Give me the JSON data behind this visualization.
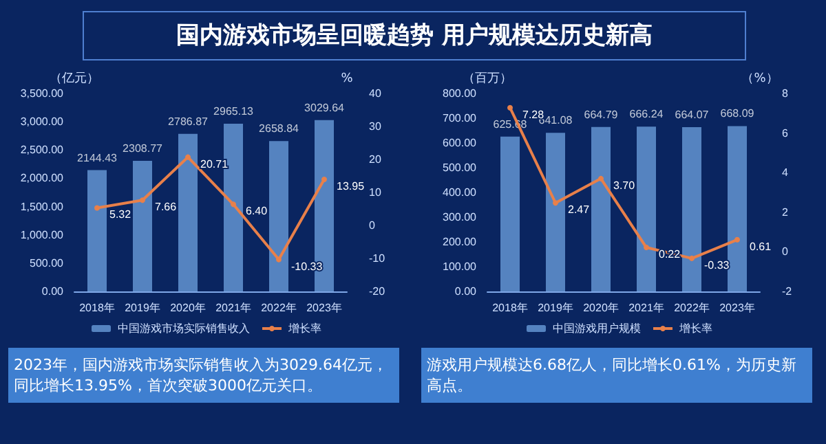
{
  "chart_data": [
    {
      "type": "bar",
      "title": "国内游戏市场呈回暖趋势 用户规模达历史新高",
      "categories": [
        "2018年",
        "2019年",
        "2020年",
        "2021年",
        "2022年",
        "2023年"
      ],
      "ylabel": "（亿元）",
      "y2label": "%",
      "ylim": [
        0,
        3500
      ],
      "yticks": [
        {
          "value": 0,
          "label": "0.00"
        },
        {
          "value": 500,
          "label": "500.00"
        },
        {
          "value": 1000,
          "label": "1,000.00"
        },
        {
          "value": 1500,
          "label": "1,500.00"
        },
        {
          "value": 2000,
          "label": "2,000.00"
        },
        {
          "value": 2500,
          "label": "2,500.00"
        },
        {
          "value": 3000,
          "label": "3,000.00"
        },
        {
          "value": 3500,
          "label": "3,500.00"
        }
      ],
      "y2lim": [
        -20,
        40
      ],
      "y2ticks": [
        -20,
        -10,
        0,
        10,
        20,
        30,
        40
      ],
      "legend": "bottom",
      "grid": false,
      "annotations": [
        "2023年，国内游戏市场实际销售收入为3029.64亿元，同比增长13.95%，首次突破3000亿元关口。"
      ],
      "series": [
        {
          "name": "中国游戏市场实际销售收入",
          "color": "#6fa3e0",
          "values": [
            2144.43,
            2308.77,
            2786.87,
            2965.13,
            2658.84,
            3029.64
          ],
          "value_labels": [
            "2144.43",
            "2308.77",
            "2786.87",
            "2965.13",
            "2658.84",
            "3029.64"
          ]
        },
        {
          "name": "增长率",
          "type": "line",
          "axis": "y2",
          "marker": "circle",
          "color": "#e8804a",
          "values": [
            5.32,
            7.66,
            20.71,
            6.4,
            -10.33,
            13.95
          ],
          "value_labels": [
            "5.32",
            "7.66",
            "20.71",
            "6.40",
            "-10.33",
            "13.95"
          ]
        }
      ]
    },
    {
      "type": "bar",
      "categories": [
        "2018年",
        "2019年",
        "2020年",
        "2021年",
        "2022年",
        "2023年"
      ],
      "ylabel": "（百万）",
      "y2label": "（%）",
      "ylim": [
        0,
        800
      ],
      "yticks": [
        {
          "value": 0,
          "label": "0.00"
        },
        {
          "value": 100,
          "label": "100.00"
        },
        {
          "value": 200,
          "label": "200.00"
        },
        {
          "value": 300,
          "label": "300.00"
        },
        {
          "value": 400,
          "label": "400.00"
        },
        {
          "value": 500,
          "label": "500.00"
        },
        {
          "value": 600,
          "label": "600.00"
        },
        {
          "value": 700,
          "label": "700.00"
        },
        {
          "value": 800,
          "label": "800.00"
        }
      ],
      "y2lim": [
        -2,
        8
      ],
      "y2ticks": [
        -2,
        0,
        2,
        4,
        6,
        8
      ],
      "legend": "bottom",
      "grid": false,
      "annotations": [
        "游戏用户规模达6.68亿人，同比增长0.61%，为历史新高点。"
      ],
      "series": [
        {
          "name": "中国游戏用户规模",
          "color": "#6fa3e0",
          "values": [
            625.68,
            641.08,
            664.79,
            666.24,
            664.07,
            668.09
          ],
          "value_labels": [
            "625.68",
            "641.08",
            "664.79",
            "666.24",
            "664.07",
            "668.09"
          ]
        },
        {
          "name": "增长率",
          "type": "line",
          "axis": "y2",
          "marker": "circle",
          "color": "#e8804a",
          "values": [
            7.28,
            2.47,
            3.7,
            0.22,
            -0.33,
            0.61
          ],
          "value_labels": [
            "7.28",
            "2.47",
            "3.70",
            "0.22",
            "-0.33",
            "0.61"
          ]
        }
      ]
    }
  ]
}
